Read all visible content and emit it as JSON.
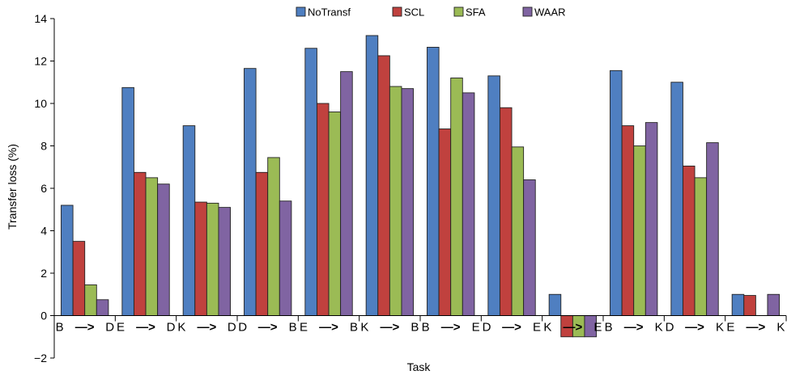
{
  "chart_data": {
    "type": "bar",
    "title": "",
    "xlabel": "Task",
    "ylabel": "Transfer loss (%)",
    "ylim": [
      -2,
      14
    ],
    "yticks": [
      -2,
      0,
      2,
      4,
      6,
      8,
      10,
      12,
      14
    ],
    "ytick_labels": [
      "−2",
      "0",
      "2",
      "4",
      "6",
      "8",
      "10",
      "12",
      "14"
    ],
    "categories": [
      {
        "from": "B",
        "to": "D"
      },
      {
        "from": "E",
        "to": "D"
      },
      {
        "from": "K",
        "to": "D"
      },
      {
        "from": "D",
        "to": "B"
      },
      {
        "from": "E",
        "to": "B"
      },
      {
        "from": "K",
        "to": "B"
      },
      {
        "from": "B",
        "to": "E"
      },
      {
        "from": "D",
        "to": "E"
      },
      {
        "from": "K",
        "to": "E"
      },
      {
        "from": "B",
        "to": "K"
      },
      {
        "from": "D",
        "to": "K"
      },
      {
        "from": "E",
        "to": "K"
      }
    ],
    "arrow": "—>",
    "series": [
      {
        "name": "NoTransf",
        "color": "#4f7fc1",
        "values": [
          5.2,
          10.75,
          8.95,
          11.65,
          12.6,
          13.2,
          12.65,
          11.3,
          1.0,
          11.55,
          11.0,
          1.0
        ]
      },
      {
        "name": "SCL",
        "color": "#c0413e",
        "values": [
          3.5,
          6.75,
          5.35,
          6.75,
          10.0,
          12.25,
          8.8,
          9.8,
          -1.0,
          8.95,
          7.05,
          0.95
        ]
      },
      {
        "name": "SFA",
        "color": "#9bbb55",
        "values": [
          1.45,
          6.5,
          5.3,
          7.45,
          9.6,
          10.8,
          11.2,
          7.95,
          -1.0,
          8.0,
          6.5,
          0
        ]
      },
      {
        "name": "WAAR",
        "color": "#8064a2",
        "values": [
          0.75,
          6.2,
          5.1,
          5.4,
          11.5,
          10.7,
          10.5,
          6.4,
          -1.0,
          9.1,
          8.15,
          1.0
        ]
      }
    ],
    "legend_position": "top-center",
    "grid": false
  }
}
